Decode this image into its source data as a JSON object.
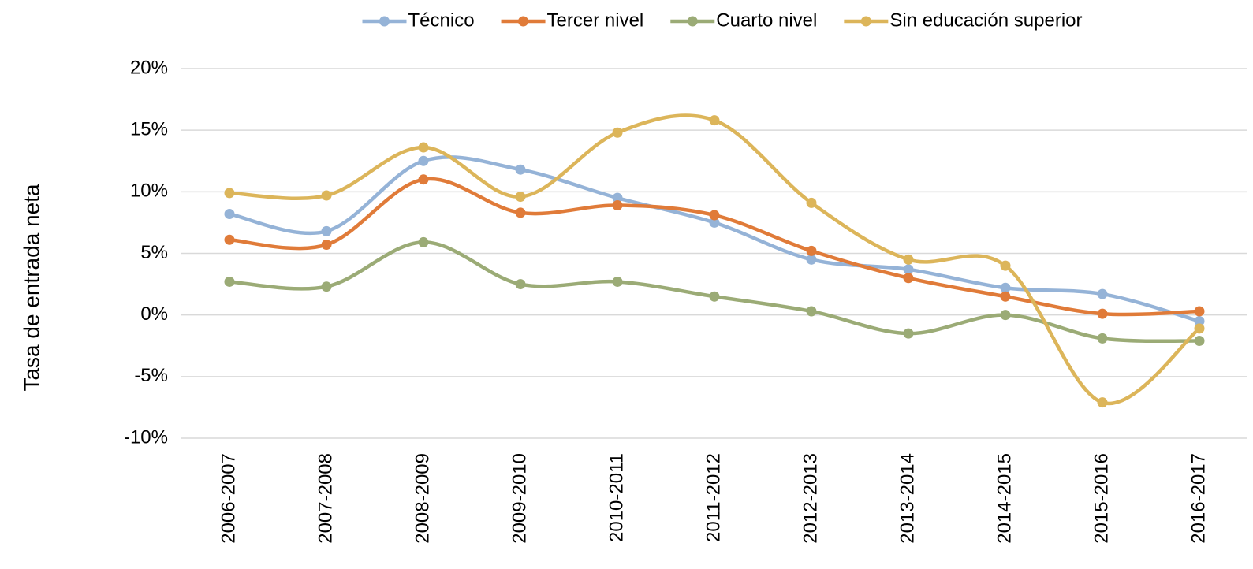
{
  "chart_data": {
    "type": "line",
    "y_label": "Tasa de entrada neta",
    "categories": [
      "2006-2007",
      "2007-2008",
      "2008-2009",
      "2009-2010",
      "2010-2011",
      "2011-2012",
      "2012-2013",
      "2013-2014",
      "2014-2015",
      "2015-2016",
      "2016-2017"
    ],
    "series": [
      {
        "name": "Técnico",
        "color": "#95b3d7",
        "values": [
          8.2,
          6.8,
          12.5,
          11.8,
          9.5,
          7.5,
          4.5,
          3.7,
          2.2,
          1.7,
          -0.5
        ]
      },
      {
        "name": "Tercer nivel",
        "color": "#e07b39",
        "values": [
          6.1,
          5.7,
          11.0,
          8.3,
          8.9,
          8.1,
          5.2,
          3.0,
          1.5,
          0.1,
          0.3
        ]
      },
      {
        "name": "Cuarto nivel",
        "color": "#9bab76",
        "values": [
          2.7,
          2.3,
          5.9,
          2.5,
          2.7,
          1.5,
          0.3,
          -1.5,
          0,
          -1.9,
          -2.1
        ]
      },
      {
        "name": "Sin educación superior",
        "color": "#dcb55a",
        "values": [
          9.9,
          9.7,
          13.6,
          9.6,
          14.8,
          15.8,
          9.1,
          4.5,
          4.0,
          -7.1,
          -1.1
        ]
      }
    ],
    "ylim": [
      -10,
      20
    ],
    "yticks": [
      {
        "value": -10,
        "label": "-10%"
      },
      {
        "value": -5,
        "label": "-5%"
      },
      {
        "value": 0,
        "label": "0%"
      },
      {
        "value": 5,
        "label": "5%"
      },
      {
        "value": 10,
        "label": "10%"
      },
      {
        "value": 15,
        "label": "15%"
      },
      {
        "value": 20,
        "label": "20%"
      }
    ],
    "grid": true,
    "smooth": true,
    "legend": "top"
  }
}
